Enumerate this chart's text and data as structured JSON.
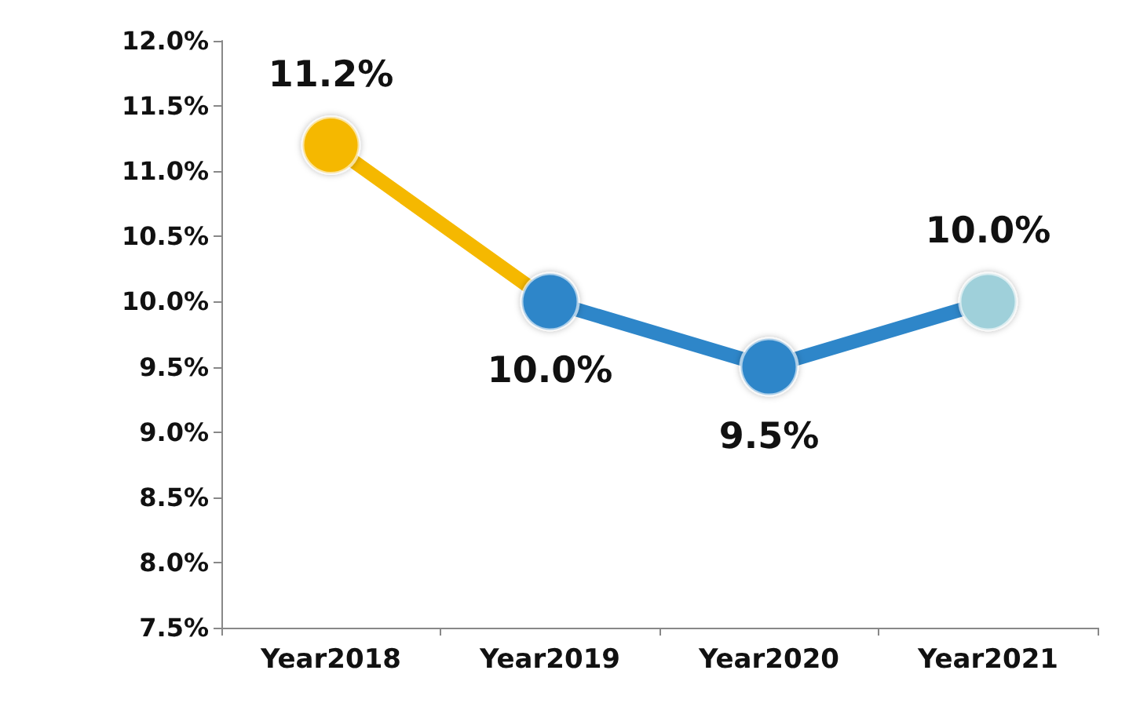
{
  "chart_data": {
    "type": "line",
    "categories": [
      "Year2018",
      "Year2019",
      "Year2020",
      "Year2021"
    ],
    "series": [
      {
        "colors": [
          "#f5b800",
          "#2e86c9",
          "#2e86c9",
          "#9fd0da"
        ],
        "values": [
          11.2,
          10.0,
          9.5,
          10.0
        ],
        "value_labels": [
          "11.2%",
          "10.0%",
          "9.5%",
          "10.0%"
        ]
      }
    ],
    "ylim": [
      7.5,
      12.0
    ],
    "yticks": [
      {
        "value": 7.5,
        "label": "7.5%"
      },
      {
        "value": 8.0,
        "label": "8.0%"
      },
      {
        "value": 8.5,
        "label": "8.5%"
      },
      {
        "value": 9.0,
        "label": "9.0%"
      },
      {
        "value": 9.5,
        "label": "9.5%"
      },
      {
        "value": 10.0,
        "label": "10.0%"
      },
      {
        "value": 10.5,
        "label": "10.5%"
      },
      {
        "value": 11.0,
        "label": "11.0%"
      },
      {
        "value": 11.5,
        "label": "11.5%"
      },
      {
        "value": 12.0,
        "label": "12.0%"
      }
    ],
    "grid": false,
    "marker": "circle",
    "line_style": "solid"
  }
}
